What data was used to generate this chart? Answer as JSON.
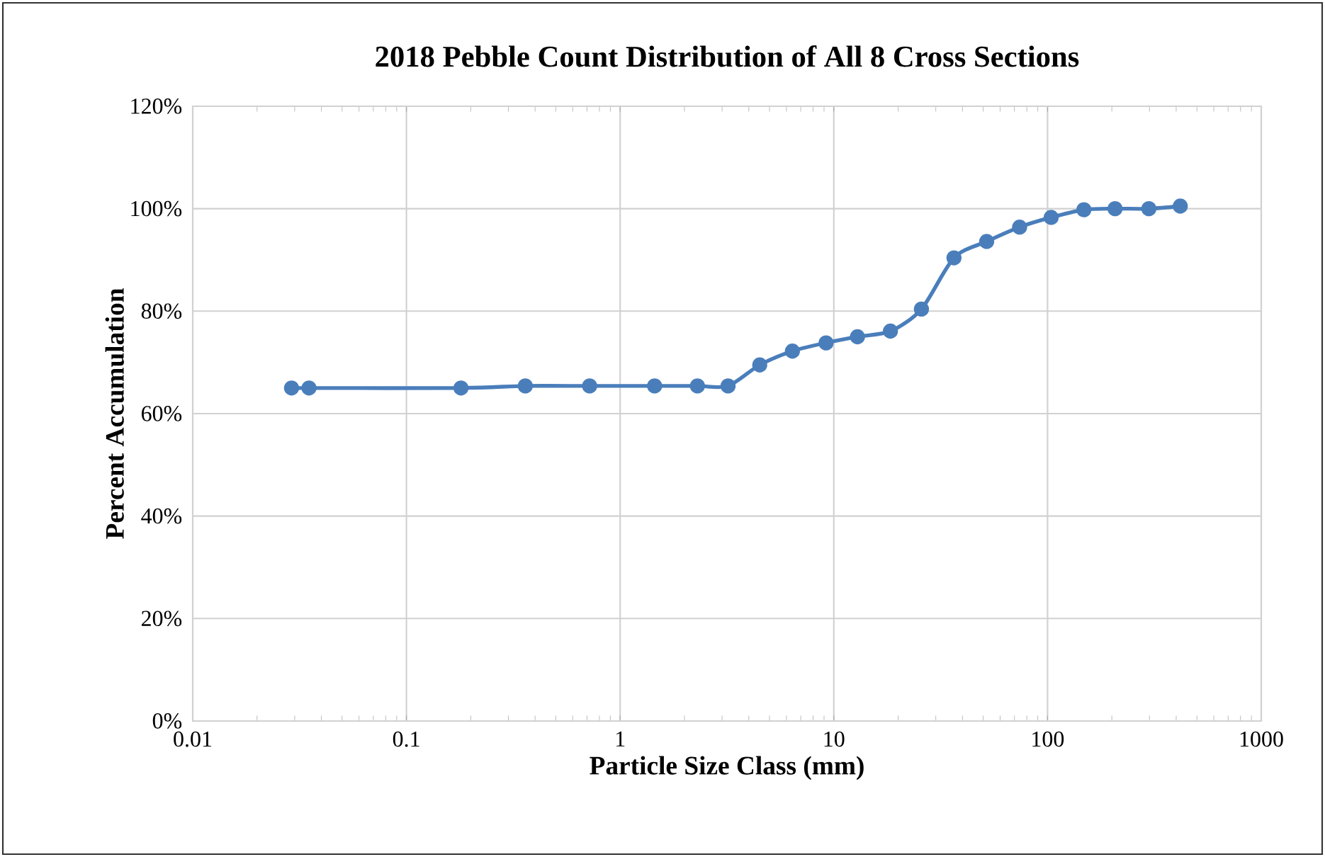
{
  "chart_data": {
    "type": "line",
    "title": "2018 Pebble Count Distribution of All 8 Cross Sections",
    "xlabel": "Particle Size Class (mm)",
    "ylabel": "Percent Accumulation",
    "x": [
      0.029,
      0.035,
      0.18,
      0.36,
      0.72,
      1.45,
      2.3,
      3.2,
      4.5,
      6.4,
      9.2,
      12.9,
      18.4,
      25.7,
      36.5,
      51.9,
      74,
      104,
      148,
      207,
      298,
      418
    ],
    "series": [
      {
        "color": "#4a7ebb",
        "values": [
          65,
          65,
          65,
          65.4,
          65.4,
          65.4,
          65.4,
          65.4,
          69.5,
          72.2,
          73.8,
          75.0,
          76.1,
          80.4,
          90.4,
          93.6,
          96.4,
          98.3,
          99.8,
          100,
          100,
          100.5
        ]
      }
    ],
    "log": "x",
    "xlim": [
      0.01,
      1000
    ],
    "xticks": [
      0.01,
      0.1,
      1,
      10,
      100,
      1000
    ],
    "ylim": [
      0,
      120
    ],
    "yticks": [
      {
        "value": 0,
        "label": "0%"
      },
      {
        "value": 20,
        "label": "20%"
      },
      {
        "value": 40,
        "label": "40%"
      },
      {
        "value": 60,
        "label": "60%"
      },
      {
        "value": 80,
        "label": "80%"
      },
      {
        "value": 100,
        "label": "100%"
      },
      {
        "value": 120,
        "label": "120%"
      }
    ],
    "grid": true,
    "legend": false,
    "marker": "circle",
    "line_style": "solid"
  }
}
